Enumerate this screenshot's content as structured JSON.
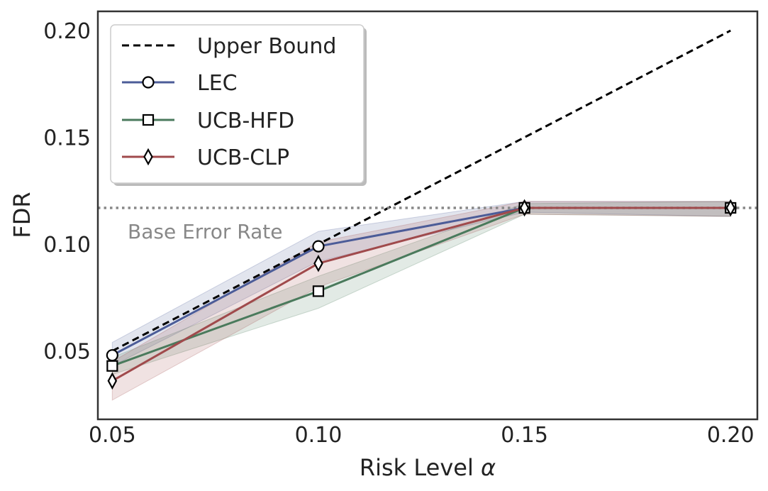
{
  "chart_data": {
    "type": "line",
    "xlabel": "Risk Level",
    "xlabel_symbol": "α",
    "ylabel": "FDR",
    "x": [
      0.05,
      0.1,
      0.15,
      0.2
    ],
    "x_ticks": [
      "0.05",
      "0.10",
      "0.15",
      "0.20"
    ],
    "y_ticks": [
      "0.05",
      "0.10",
      "0.15",
      "0.20"
    ],
    "y_tick_values": [
      0.05,
      0.1,
      0.15,
      0.2
    ],
    "xlim": [
      0.0465,
      0.2065
    ],
    "ylim": [
      0.018,
      0.209
    ],
    "grid": false,
    "legend_position": "top-left",
    "reference_lines": [
      {
        "name": "Upper Bound",
        "style": "dashed",
        "color": "#000000",
        "x": [
          0.05,
          0.2
        ],
        "y": [
          0.05,
          0.2
        ]
      },
      {
        "name": "Base Error Rate",
        "style": "dotted",
        "color": "#888888",
        "y": 0.117,
        "label": "Base Error Rate"
      }
    ],
    "series": [
      {
        "name": "LEC",
        "marker": "circle",
        "color": "#4C5C98",
        "values": [
          0.048,
          0.099,
          0.117,
          0.117
        ],
        "lower": [
          0.043,
          0.092,
          0.115,
          0.113
        ],
        "upper": [
          0.054,
          0.106,
          0.12,
          0.12
        ]
      },
      {
        "name": "UCB-HFD",
        "marker": "square",
        "color": "#4A7A5C",
        "values": [
          0.043,
          0.078,
          0.117,
          0.117
        ],
        "lower": [
          0.039,
          0.07,
          0.114,
          0.113
        ],
        "upper": [
          0.047,
          0.085,
          0.119,
          0.12
        ]
      },
      {
        "name": "UCB-CLP",
        "marker": "diamond",
        "color": "#A04A4C",
        "values": [
          0.036,
          0.091,
          0.117,
          0.117
        ],
        "lower": [
          0.027,
          0.08,
          0.114,
          0.113
        ],
        "upper": [
          0.045,
          0.101,
          0.12,
          0.12
        ]
      }
    ]
  }
}
